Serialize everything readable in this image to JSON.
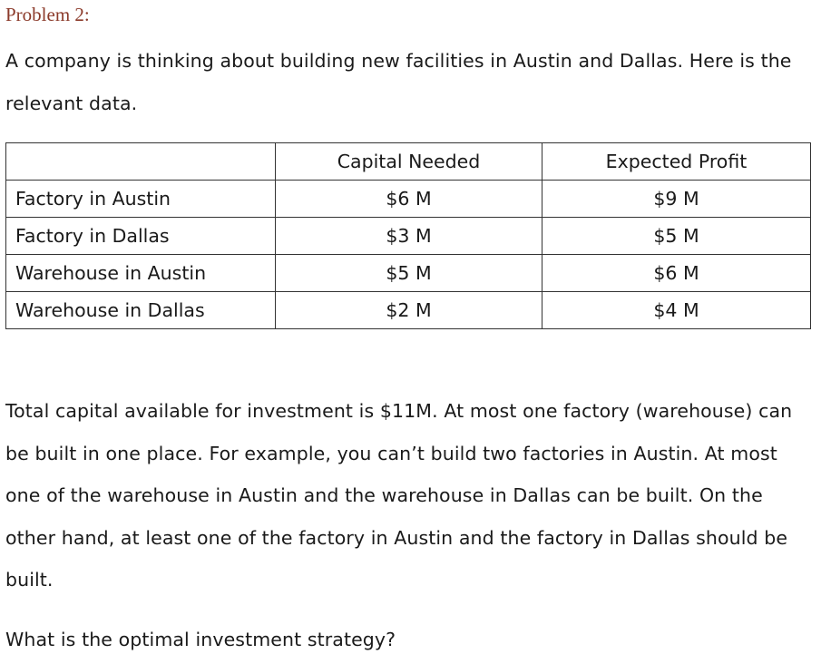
{
  "problem_title": "Problem 2:",
  "intro_text": "A company is thinking about building new facilities in Austin and Dallas. Here is the relevant data.",
  "table": {
    "headers": [
      "",
      "Capital Needed",
      "Expected Profit"
    ],
    "rows": [
      {
        "facility": "Factory in Austin",
        "capital": "$6 M",
        "profit": "$9 M"
      },
      {
        "facility": "Factory in Dallas",
        "capital": "$3 M",
        "profit": "$5 M"
      },
      {
        "facility": "Warehouse in Austin",
        "capital": "$5 M",
        "profit": "$6 M"
      },
      {
        "facility": "Warehouse in Dallas",
        "capital": "$2 M",
        "profit": "$4 M"
      }
    ]
  },
  "constraints_text": "Total capital available for investment is $11M. At most one factory (warehouse) can be built in one place. For example, you can’t build two factories in Austin. At most one of the warehouse in Austin and the warehouse in Dallas can be built. On the other hand, at least one of the factory in Austin and the factory in Dallas should be built.",
  "question_text": "What is the optimal investment strategy?"
}
